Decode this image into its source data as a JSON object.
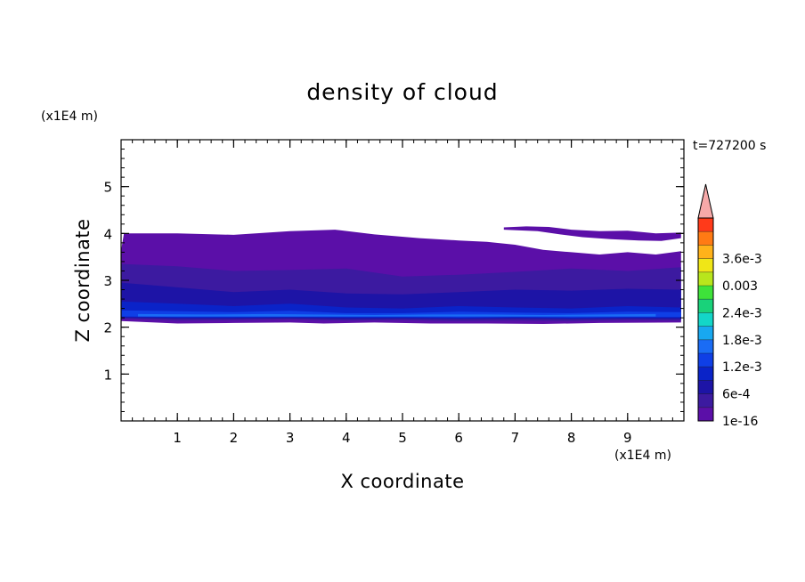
{
  "chart_data": {
    "type": "heatmap",
    "title": "density of cloud",
    "xlabel": "X coordinate",
    "ylabel": "Z coordinate",
    "x_unit": "(x1E4 m)",
    "y_unit": "(x1E4 m)",
    "time_label": "t=727200 s",
    "xlim": [
      0,
      10
    ],
    "ylim": [
      0,
      6
    ],
    "x_ticks": [
      1,
      2,
      3,
      4,
      5,
      6,
      7,
      8,
      9
    ],
    "y_ticks": [
      1,
      2,
      3,
      4,
      5
    ],
    "x_tick_labels": [
      "1",
      "2",
      "3",
      "4",
      "5",
      "6",
      "7",
      "8",
      "9"
    ],
    "y_tick_labels": [
      "1",
      "2",
      "3",
      "4",
      "5"
    ],
    "colorbar": {
      "levels": [
        1e-16,
        0.0003,
        0.0006,
        0.0009,
        0.0012,
        0.0015,
        0.0018,
        0.0021,
        0.0024,
        0.0027,
        0.003,
        0.0033,
        0.0036,
        0.0039
      ],
      "colors": [
        "#5b0fa8",
        "#3c1aa0",
        "#1d14a6",
        "#0a23c8",
        "#0f3fe6",
        "#1a6cf5",
        "#18a8f0",
        "#13d6c8",
        "#19d27a",
        "#3ee23a",
        "#b8e61c",
        "#f0e617",
        "#ffb21a",
        "#ff7a14",
        "#ff3a1a"
      ],
      "extend_color": "#f6a9a9",
      "tick_labels": [
        "1e-16",
        "6e-4",
        "1.2e-3",
        "1.8e-3",
        "2.4e-3",
        "0.003",
        "3.6e-3"
      ],
      "tick_values": [
        1e-16,
        0.0006,
        0.0012,
        0.0018,
        0.0024,
        0.003,
        0.0036
      ]
    },
    "cloud_layers": [
      {
        "name": "outer",
        "density": 1e-16,
        "color_index": 0,
        "top": [
          [
            0.0,
            3.63
          ],
          [
            0.05,
            4.0
          ],
          [
            1.0,
            4.0
          ],
          [
            2.0,
            3.97
          ],
          [
            3.0,
            4.05
          ],
          [
            3.8,
            4.08
          ],
          [
            4.5,
            3.98
          ],
          [
            5.3,
            3.9
          ],
          [
            6.0,
            3.85
          ],
          [
            6.5,
            3.82
          ],
          [
            7.0,
            3.76
          ],
          [
            7.5,
            3.65
          ],
          [
            8.0,
            3.6
          ],
          [
            8.5,
            3.55
          ],
          [
            9.0,
            3.6
          ],
          [
            9.5,
            3.55
          ],
          [
            9.95,
            3.62
          ]
        ],
        "bottom": [
          [
            0.0,
            2.13
          ],
          [
            1.0,
            2.08
          ],
          [
            2.0,
            2.09
          ],
          [
            3.0,
            2.1
          ],
          [
            3.6,
            2.08
          ],
          [
            4.5,
            2.1
          ],
          [
            5.5,
            2.08
          ],
          [
            6.5,
            2.08
          ],
          [
            7.5,
            2.07
          ],
          [
            8.5,
            2.09
          ],
          [
            9.95,
            2.1
          ]
        ]
      },
      {
        "name": "upper-filament",
        "density": 1e-16,
        "color_index": 0,
        "top": [
          [
            6.8,
            4.13
          ],
          [
            7.2,
            4.15
          ],
          [
            7.6,
            4.14
          ],
          [
            8.0,
            4.08
          ],
          [
            8.5,
            4.05
          ],
          [
            9.0,
            4.06
          ],
          [
            9.5,
            4.0
          ],
          [
            9.95,
            4.02
          ]
        ],
        "bottom": [
          [
            6.8,
            4.08
          ],
          [
            7.4,
            4.05
          ],
          [
            7.8,
            3.98
          ],
          [
            8.2,
            3.92
          ],
          [
            8.7,
            3.88
          ],
          [
            9.2,
            3.85
          ],
          [
            9.6,
            3.84
          ],
          [
            9.95,
            3.9
          ]
        ]
      },
      {
        "name": "inner-1",
        "density": 0.0003,
        "color_index": 1,
        "top": [
          [
            0.0,
            3.35
          ],
          [
            1.0,
            3.3
          ],
          [
            2.0,
            3.2
          ],
          [
            3.0,
            3.22
          ],
          [
            4.0,
            3.25
          ],
          [
            5.0,
            3.08
          ],
          [
            6.0,
            3.12
          ],
          [
            7.0,
            3.18
          ],
          [
            8.0,
            3.25
          ],
          [
            9.0,
            3.2
          ],
          [
            9.95,
            3.28
          ]
        ],
        "bottom": [
          [
            0.0,
            2.18
          ],
          [
            1.0,
            2.14
          ],
          [
            2.0,
            2.15
          ],
          [
            3.0,
            2.16
          ],
          [
            4.0,
            2.14
          ],
          [
            5.0,
            2.15
          ],
          [
            6.0,
            2.13
          ],
          [
            7.0,
            2.14
          ],
          [
            8.0,
            2.13
          ],
          [
            9.0,
            2.15
          ],
          [
            9.95,
            2.14
          ]
        ]
      },
      {
        "name": "inner-2",
        "density": 0.0006,
        "color_index": 2,
        "top": [
          [
            0.0,
            2.95
          ],
          [
            1.0,
            2.85
          ],
          [
            2.0,
            2.75
          ],
          [
            3.0,
            2.8
          ],
          [
            4.0,
            2.72
          ],
          [
            5.0,
            2.7
          ],
          [
            6.0,
            2.75
          ],
          [
            7.0,
            2.8
          ],
          [
            8.0,
            2.78
          ],
          [
            9.0,
            2.82
          ],
          [
            9.95,
            2.8
          ]
        ],
        "bottom": [
          [
            0.0,
            2.2
          ],
          [
            1.0,
            2.18
          ],
          [
            2.0,
            2.18
          ],
          [
            3.0,
            2.19
          ],
          [
            4.0,
            2.17
          ],
          [
            5.0,
            2.18
          ],
          [
            6.0,
            2.17
          ],
          [
            7.0,
            2.18
          ],
          [
            8.0,
            2.17
          ],
          [
            9.0,
            2.18
          ],
          [
            9.95,
            2.17
          ]
        ]
      },
      {
        "name": "inner-3",
        "density": 0.0009,
        "color_index": 3,
        "top": [
          [
            0.0,
            2.55
          ],
          [
            1.0,
            2.5
          ],
          [
            2.0,
            2.45
          ],
          [
            3.0,
            2.5
          ],
          [
            4.0,
            2.42
          ],
          [
            5.0,
            2.4
          ],
          [
            6.0,
            2.45
          ],
          [
            7.0,
            2.42
          ],
          [
            8.0,
            2.4
          ],
          [
            9.0,
            2.45
          ],
          [
            9.95,
            2.42
          ]
        ],
        "bottom": [
          [
            0.0,
            2.22
          ],
          [
            1.0,
            2.2
          ],
          [
            2.0,
            2.2
          ],
          [
            3.0,
            2.21
          ],
          [
            4.0,
            2.2
          ],
          [
            5.0,
            2.2
          ],
          [
            6.0,
            2.19
          ],
          [
            7.0,
            2.2
          ],
          [
            8.0,
            2.19
          ],
          [
            9.0,
            2.2
          ],
          [
            9.95,
            2.2
          ]
        ]
      },
      {
        "name": "inner-4",
        "density": 0.0012,
        "color_index": 4,
        "top": [
          [
            0.0,
            2.36
          ],
          [
            1.0,
            2.34
          ],
          [
            2.0,
            2.32
          ],
          [
            3.0,
            2.35
          ],
          [
            4.0,
            2.3
          ],
          [
            5.0,
            2.3
          ],
          [
            6.0,
            2.33
          ],
          [
            7.0,
            2.31
          ],
          [
            8.0,
            2.3
          ],
          [
            9.0,
            2.33
          ],
          [
            9.95,
            2.32
          ]
        ],
        "bottom": [
          [
            0.0,
            2.23
          ],
          [
            1.0,
            2.22
          ],
          [
            2.0,
            2.22
          ],
          [
            3.0,
            2.22
          ],
          [
            4.0,
            2.22
          ],
          [
            5.0,
            2.22
          ],
          [
            6.0,
            2.21
          ],
          [
            7.0,
            2.22
          ],
          [
            8.0,
            2.21
          ],
          [
            9.0,
            2.22
          ],
          [
            9.95,
            2.22
          ]
        ]
      },
      {
        "name": "core",
        "density": 0.0015,
        "color_index": 5,
        "top": [
          [
            0.3,
            2.28
          ],
          [
            1.5,
            2.27
          ],
          [
            2.6,
            2.28
          ],
          [
            3.4,
            2.27
          ],
          [
            4.5,
            2.26
          ],
          [
            5.5,
            2.27
          ],
          [
            6.5,
            2.27
          ],
          [
            7.5,
            2.26
          ],
          [
            8.5,
            2.27
          ],
          [
            9.5,
            2.28
          ]
        ],
        "bottom": [
          [
            0.3,
            2.23
          ],
          [
            1.5,
            2.23
          ],
          [
            2.6,
            2.23
          ],
          [
            3.4,
            2.23
          ],
          [
            4.5,
            2.23
          ],
          [
            5.5,
            2.23
          ],
          [
            6.5,
            2.23
          ],
          [
            7.5,
            2.23
          ],
          [
            8.5,
            2.23
          ],
          [
            9.5,
            2.23
          ]
        ]
      }
    ]
  }
}
